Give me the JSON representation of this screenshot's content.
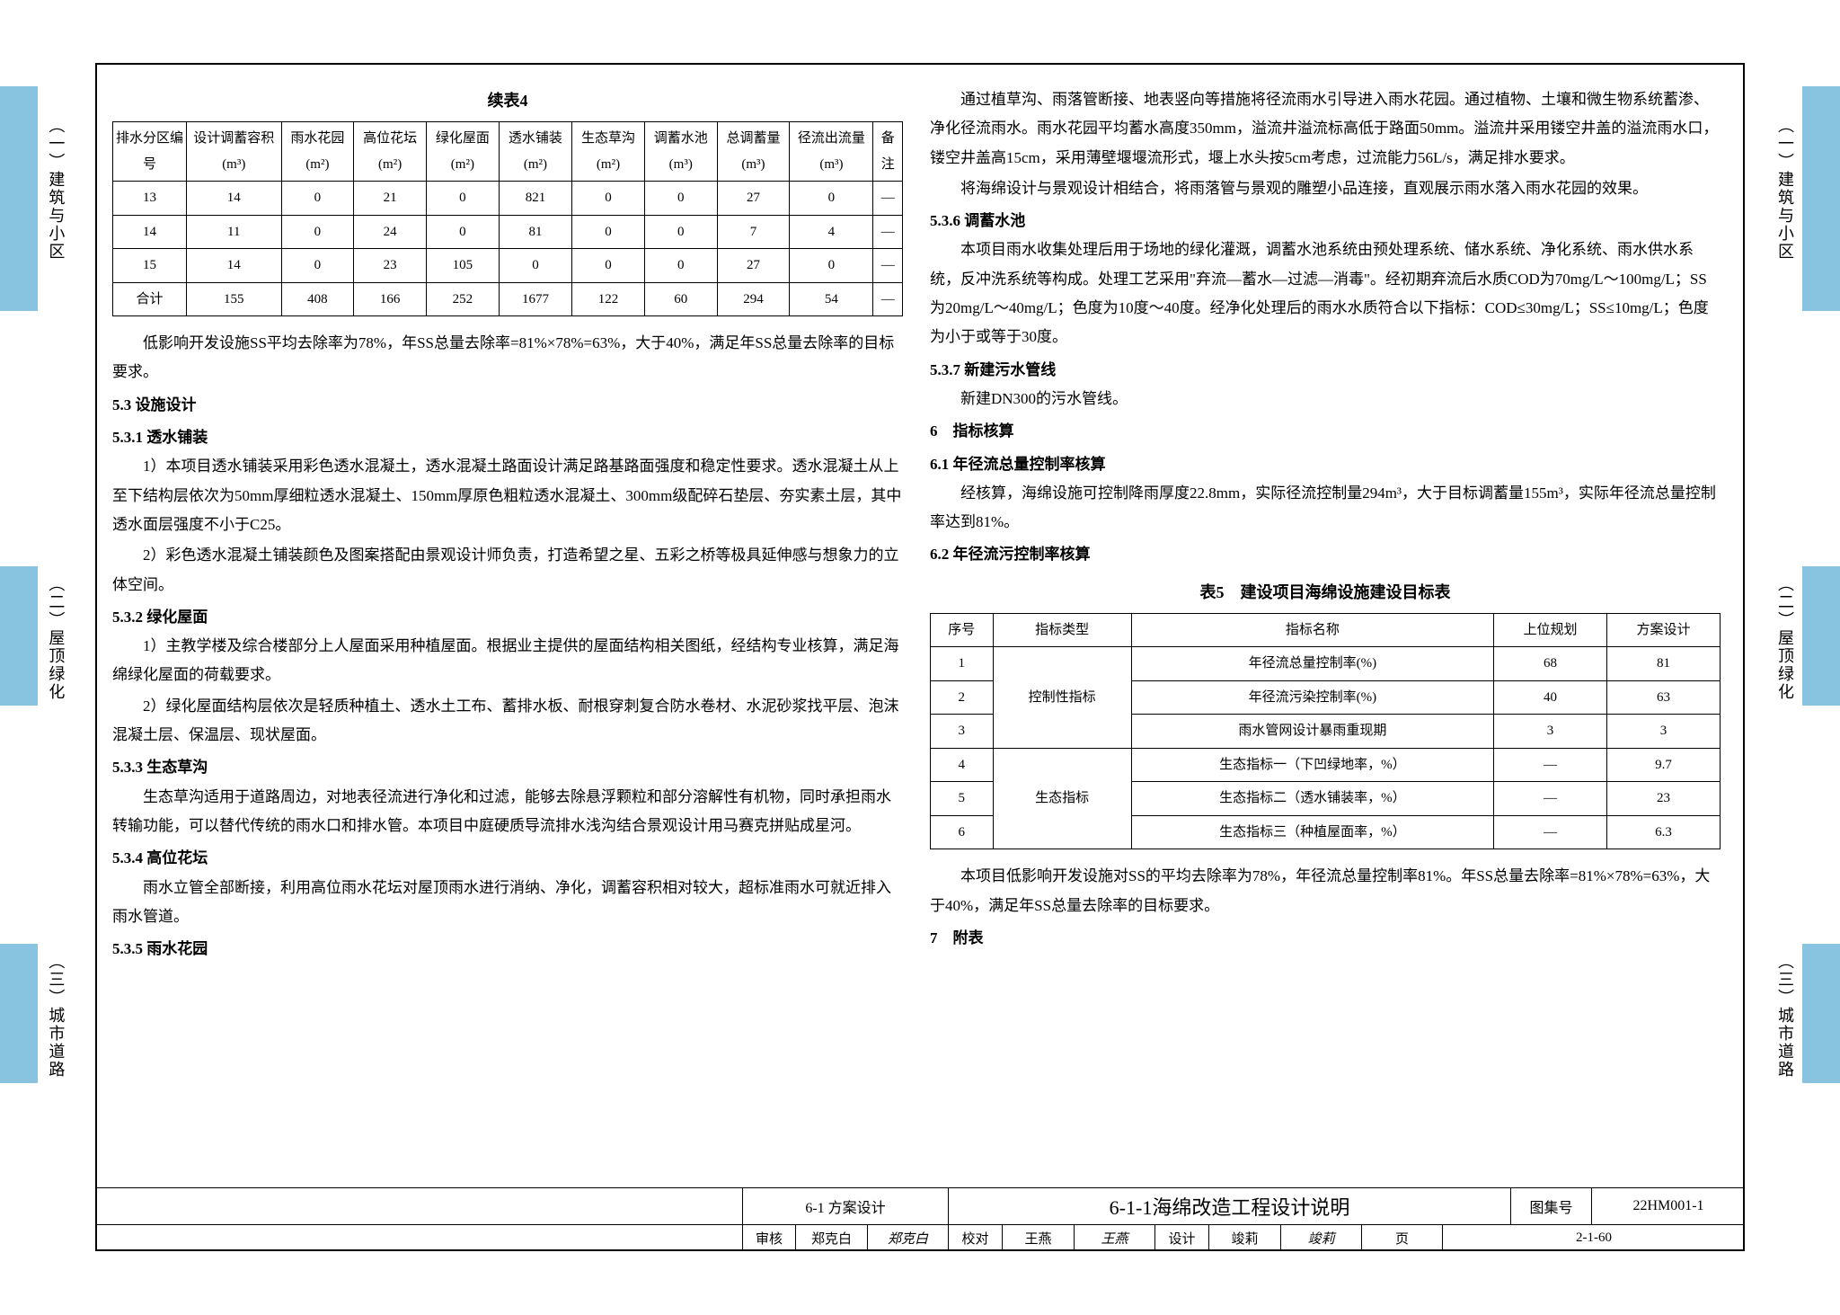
{
  "tabs": {
    "t1": "（一）建筑与小区",
    "t2": "（二）屋顶绿化",
    "t3": "（三）城市道路"
  },
  "table4": {
    "title": "续表4",
    "headers": [
      "排水分区编号",
      "设计调蓄容积(m³)",
      "雨水花园(m²)",
      "高位花坛(m²)",
      "绿化屋面(m²)",
      "透水铺装(m²)",
      "生态草沟(m²)",
      "调蓄水池(m³)",
      "总调蓄量(m³)",
      "径流出流量(m³)",
      "备注"
    ],
    "rows": [
      [
        "13",
        "14",
        "0",
        "21",
        "0",
        "821",
        "0",
        "0",
        "27",
        "0",
        "—"
      ],
      [
        "14",
        "11",
        "0",
        "24",
        "0",
        "81",
        "0",
        "0",
        "7",
        "4",
        "—"
      ],
      [
        "15",
        "14",
        "0",
        "23",
        "105",
        "0",
        "0",
        "0",
        "27",
        "0",
        "—"
      ],
      [
        "合计",
        "155",
        "408",
        "166",
        "252",
        "1677",
        "122",
        "60",
        "294",
        "54",
        "—"
      ]
    ]
  },
  "left": {
    "p1": "低影响开发设施SS平均去除率为78%，年SS总量去除率=81%×78%=63%，大于40%，满足年SS总量去除率的目标要求。",
    "h53": "5.3 设施设计",
    "h531": "5.3.1 透水铺装",
    "p531_1": "1）本项目透水铺装采用彩色透水混凝土，透水混凝土路面设计满足路基路面强度和稳定性要求。透水混凝土从上至下结构层依次为50mm厚细粒透水混凝土、150mm厚原色粗粒透水混凝土、300mm级配碎石垫层、夯实素土层，其中透水面层强度不小于C25。",
    "p531_2": "2）彩色透水混凝土铺装颜色及图案搭配由景观设计师负责，打造希望之星、五彩之桥等极具延伸感与想象力的立体空间。",
    "h532": "5.3.2 绿化屋面",
    "p532_1": "1）主教学楼及综合楼部分上人屋面采用种植屋面。根据业主提供的屋面结构相关图纸，经结构专业核算，满足海绵绿化屋面的荷载要求。",
    "p532_2": "2）绿化屋面结构层依次是轻质种植土、透水土工布、蓄排水板、耐根穿刺复合防水卷材、水泥砂浆找平层、泡沫混凝土层、保温层、现状屋面。",
    "h533": "5.3.3 生态草沟",
    "p533": "生态草沟适用于道路周边，对地表径流进行净化和过滤，能够去除悬浮颗粒和部分溶解性有机物，同时承担雨水转输功能，可以替代传统的雨水口和排水管。本项目中庭硬质导流排水浅沟结合景观设计用马赛克拼贴成星河。",
    "h534": "5.3.4 高位花坛",
    "p534": "雨水立管全部断接，利用高位雨水花坛对屋顶雨水进行消纳、净化，调蓄容积相对较大，超标准雨水可就近排入雨水管道。",
    "h535": "5.3.5 雨水花园"
  },
  "right": {
    "p535_1": "通过植草沟、雨落管断接、地表竖向等措施将径流雨水引导进入雨水花园。通过植物、土壤和微生物系统蓄渗、净化径流雨水。雨水花园平均蓄水高度350mm，溢流井溢流标高低于路面50mm。溢流井采用镂空井盖的溢流雨水口，镂空井盖高15cm，采用薄壁堰堰流形式，堰上水头按5cm考虑，过流能力56L/s，满足排水要求。",
    "p535_2": "将海绵设计与景观设计相结合，将雨落管与景观的雕塑小品连接，直观展示雨水落入雨水花园的效果。",
    "h536": "5.3.6 调蓄水池",
    "p536": "本项目雨水收集处理后用于场地的绿化灌溉，调蓄水池系统由预处理系统、储水系统、净化系统、雨水供水系统，反冲洗系统等构成。处理工艺采用\"弃流—蓄水—过滤—消毒\"。经初期弃流后水质COD为70mg/L～100mg/L；SS为20mg/L～40mg/L；色度为10度～40度。经净化处理后的雨水水质符合以下指标：COD≤30mg/L；SS≤10mg/L；色度为小于或等于30度。",
    "h537": "5.3.7 新建污水管线",
    "p537": "新建DN300的污水管线。",
    "h6": "6　指标核算",
    "h61": "6.1 年径流总量控制率核算",
    "p61": "经核算，海绵设施可控制降雨厚度22.8mm，实际径流控制量294m³，大于目标调蓄量155m³，实际年径流总量控制率达到81%。",
    "h62": "6.2 年径流污控制率核算",
    "p_after": "本项目低影响开发设施对SS的平均去除率为78%，年径流总量控制率81%。年SS总量去除率=81%×78%=63%，大于40%，满足年SS总量去除率的目标要求。",
    "h7": "7　附表"
  },
  "table5": {
    "title": "表5　建设项目海绵设施建设目标表",
    "headers": [
      "序号",
      "指标类型",
      "指标名称",
      "上位规划",
      "方案设计"
    ],
    "rows": [
      [
        "1",
        "控制性指标",
        "年径流总量控制率(%)",
        "68",
        "81"
      ],
      [
        "2",
        "",
        "年径流污染控制率(%)",
        "40",
        "63"
      ],
      [
        "3",
        "",
        "雨水管网设计暴雨重现期",
        "3",
        "3"
      ],
      [
        "4",
        "生态指标",
        "生态指标一（下凹绿地率，%）",
        "—",
        "9.7"
      ],
      [
        "5",
        "",
        "生态指标二（透水铺装率，%）",
        "—",
        "23"
      ],
      [
        "6",
        "",
        "生态指标三（种植屋面率，%）",
        "—",
        "6.3"
      ]
    ]
  },
  "titleblock": {
    "r1c1": "6-1 方案设计",
    "r1c2": "6-1-1海绵改造工程设计说明",
    "r1c3": "图集号",
    "r1c4": "22HM001-1",
    "r2": {
      "audit": "审核",
      "auditName": "郑克白",
      "auditSig": "郑克白",
      "check": "校对",
      "checkName": "王燕",
      "checkSig": "王燕",
      "design": "设计",
      "designName": "竣莉",
      "designSig": "竣莉",
      "page": "页",
      "pageNo": "2-1-60"
    }
  }
}
